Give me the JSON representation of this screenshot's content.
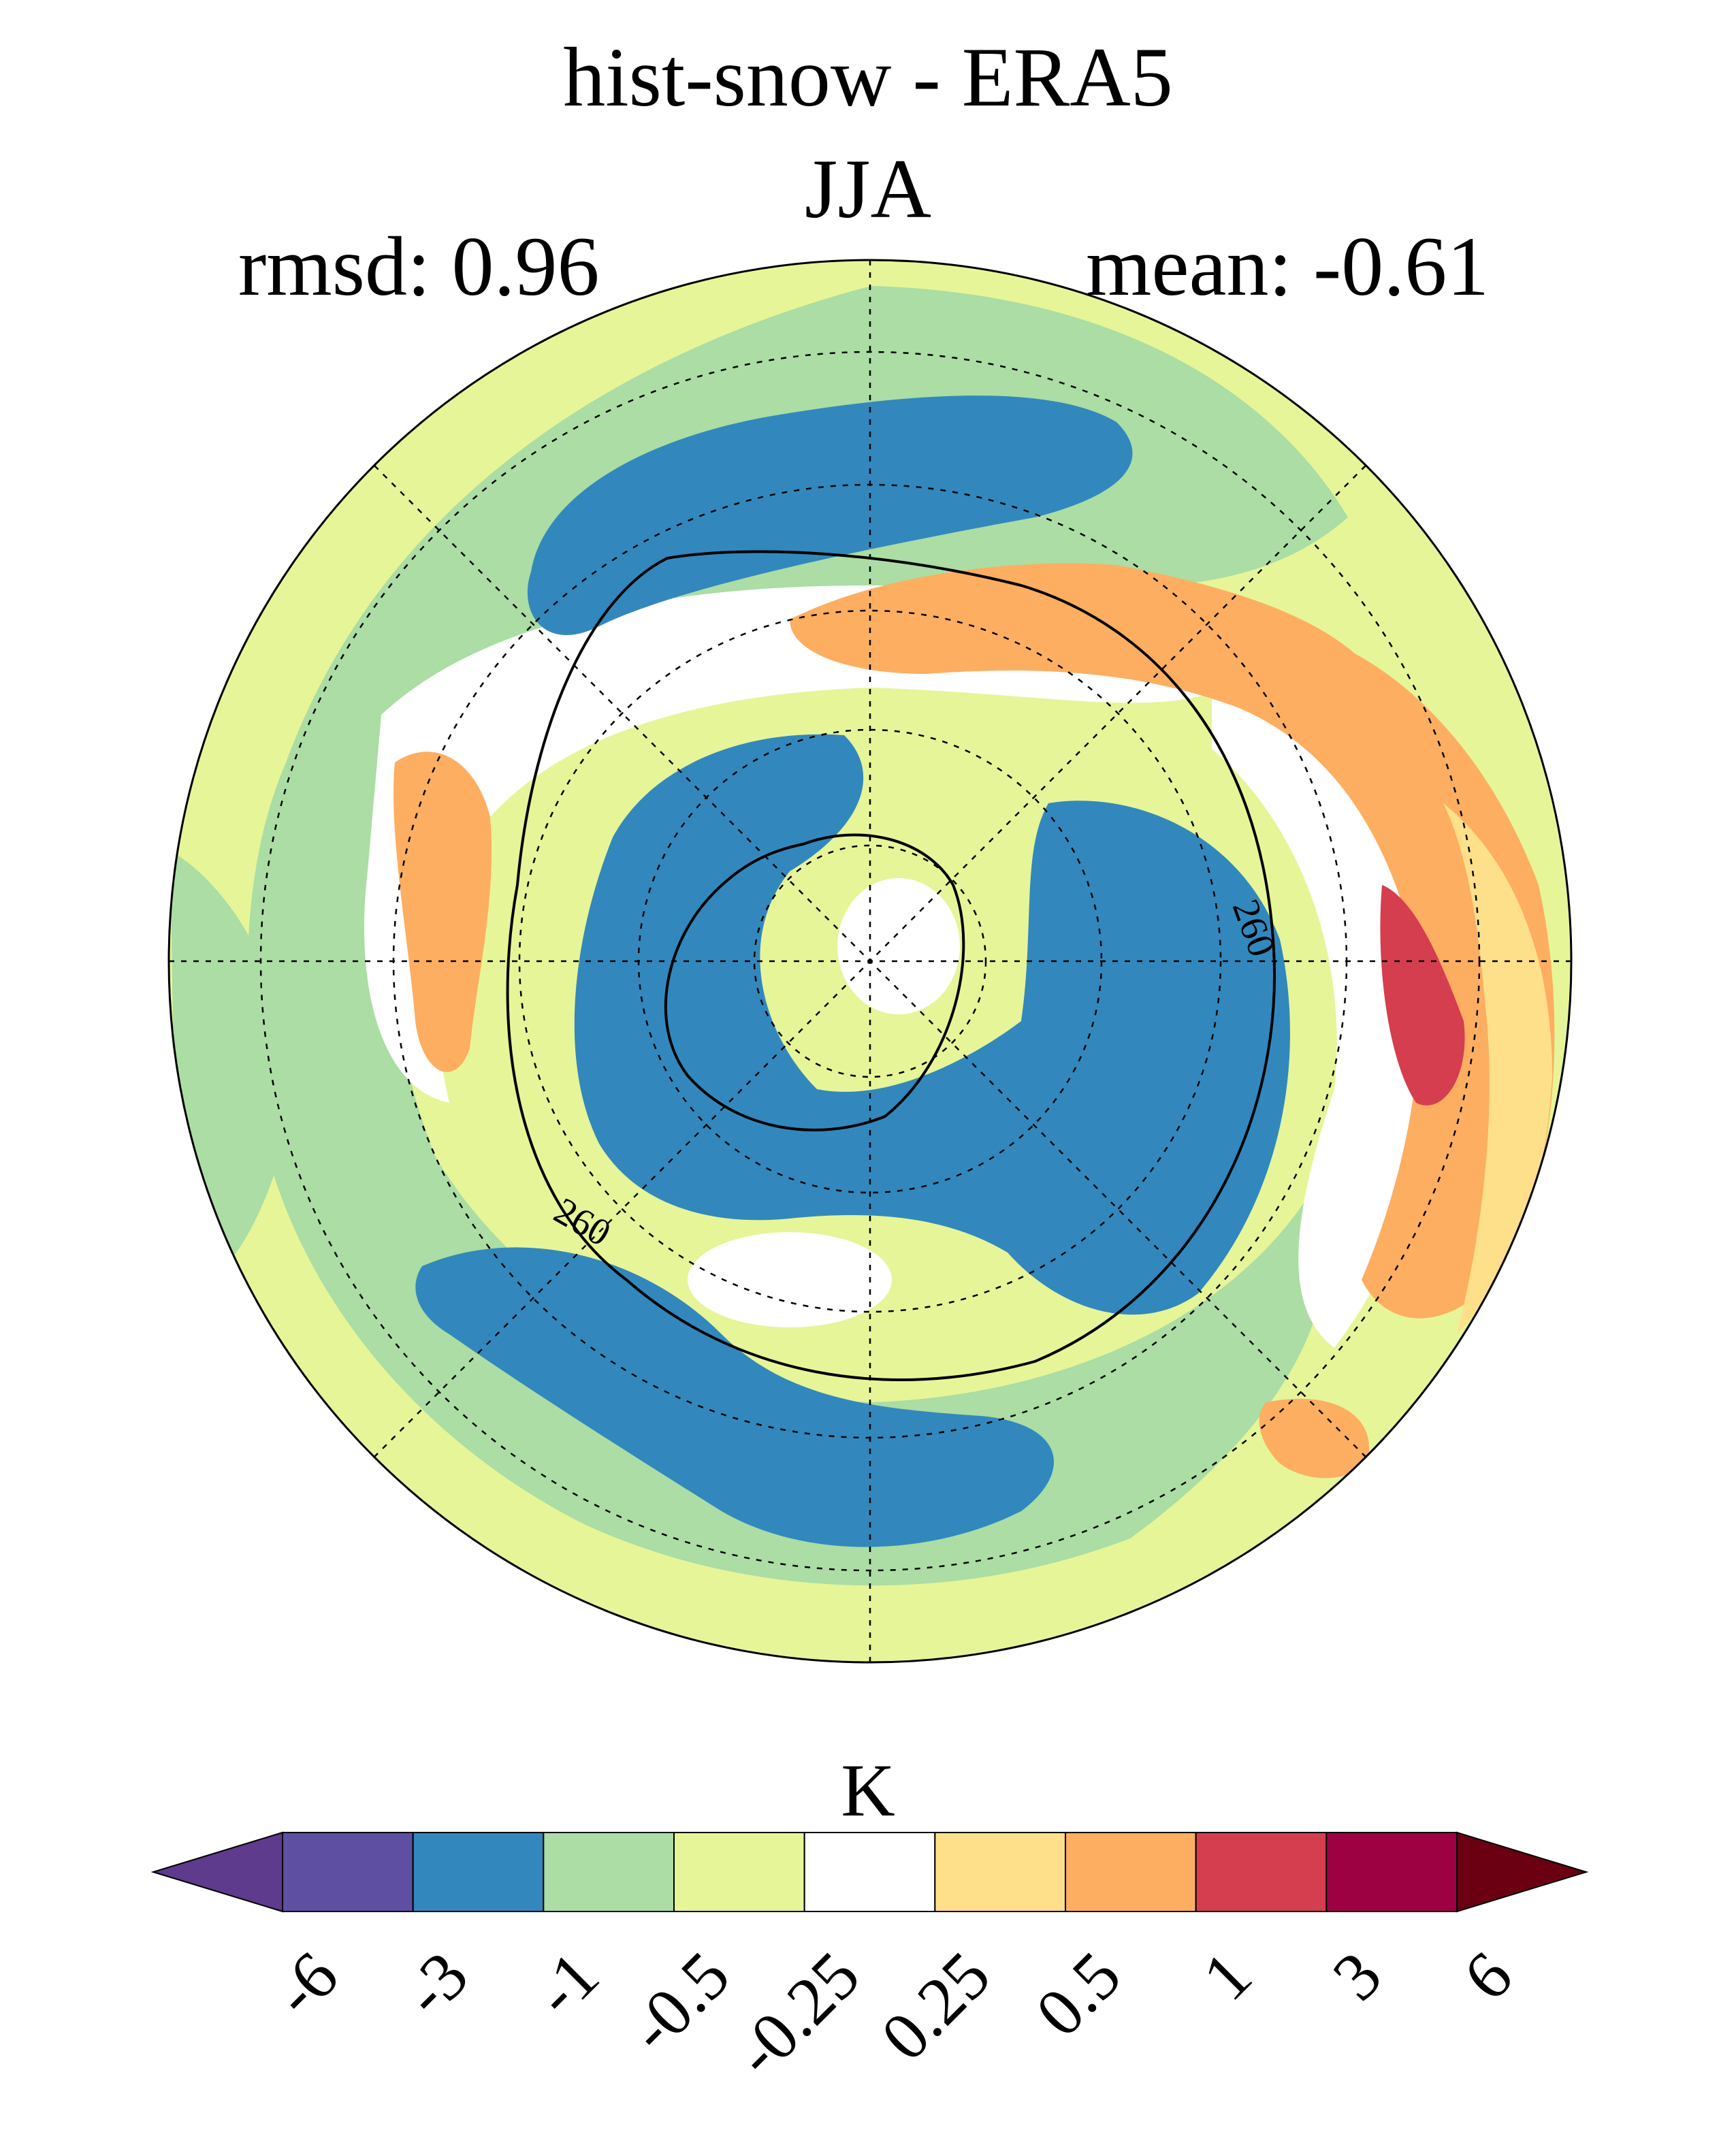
{
  "title": "hist-snow - ERA5",
  "season": "JJA",
  "stats": {
    "rmsd": "rmsd: 0.96",
    "mean": "mean: -0.61"
  },
  "map": {
    "projection": "north polar stereographic",
    "contour_label": "260",
    "colors": {
      "lt_-6": "#5e3b8c",
      "-6_-3": "#5e4fa2",
      "-3_-1": "#3288bd",
      "-1_-0.5": "#abdda4",
      "-0.5_-0.25": "#e6f598",
      "-0.25_0.25": "#ffffff",
      "0.25_0.5": "#fee08b",
      "0.5_1": "#fdae61",
      "1_3": "#d53e4f",
      "3_6": "#9e0142",
      "gt_6": "#6a0011"
    }
  },
  "colorbar": {
    "unit": "K",
    "bounds": [
      "-6",
      "-3",
      "-1",
      "-0.5",
      "-0.25",
      "0.25",
      "0.5",
      "1",
      "3",
      "6"
    ],
    "colors": [
      "#5e3b8c",
      "#5e4fa2",
      "#3288bd",
      "#abdda4",
      "#e6f598",
      "#ffffff",
      "#fee08b",
      "#fdae61",
      "#d53e4f",
      "#9e0142",
      "#6a0011"
    ]
  }
}
